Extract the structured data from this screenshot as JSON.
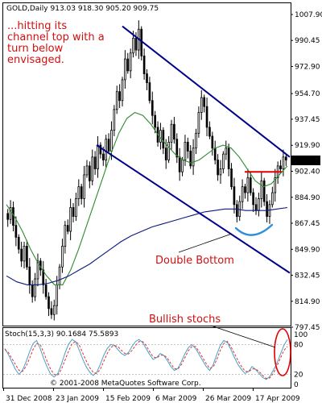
{
  "chart_data": {
    "type": "candlestick",
    "header": "GOLD,Daily  913.03 918.30 905.20 909.75",
    "price_axis": {
      "ticks": [
        "1007.90",
        "990.45",
        "972.90",
        "954.70",
        "937.45",
        "919.90",
        "902.40",
        "884.90",
        "867.45",
        "849.90",
        "832.45",
        "814.90",
        "797.45"
      ],
      "last_price": "909.75",
      "ylim": [
        797.45,
        1007.9
      ]
    },
    "date_axis": {
      "ticks": [
        "31 Dec 2008",
        "23 Jan 2009",
        "15 Feb 2009",
        "6 Mar 2009",
        "26 Mar 2009",
        "17 Apr 2009"
      ]
    },
    "closes": [
      870,
      878,
      866,
      858,
      850,
      842,
      852,
      838,
      826,
      818,
      830,
      842,
      836,
      826,
      818,
      810,
      806,
      812,
      826,
      838,
      852,
      866,
      862,
      878,
      872,
      884,
      892,
      884,
      900,
      906,
      896,
      912,
      904,
      920,
      914,
      910,
      924,
      916,
      930,
      944,
      956,
      950,
      964,
      978,
      970,
      982,
      992,
      984,
      998,
      980,
      968,
      962,
      950,
      940,
      932,
      922,
      930,
      918,
      910,
      922,
      934,
      924,
      912,
      902,
      910,
      922,
      916,
      906,
      918,
      928,
      942,
      952,
      946,
      932,
      926,
      918,
      910,
      900,
      904,
      914,
      918,
      904,
      892,
      880,
      872,
      882,
      892,
      888,
      898,
      888,
      880,
      876,
      884,
      896,
      882,
      872,
      880,
      888,
      898,
      906,
      904,
      912,
      910
    ],
    "moving_averages": [
      {
        "values": [
          880,
          872,
          862,
          850,
          840,
          832,
          826,
          826,
          836,
          850,
          866,
          882,
          898,
          914,
          928,
          938,
          942,
          940,
          934,
          926,
          920,
          914,
          910,
          908,
          910,
          914,
          918,
          920,
          918,
          912,
          904,
          896,
          892,
          894,
          900,
          906
        ]
      },
      {
        "values": [
          832,
          828,
          826,
          826,
          827,
          829,
          832,
          836,
          840,
          845,
          850,
          855,
          859,
          862,
          865,
          867,
          869,
          871,
          873,
          875,
          876,
          877,
          877,
          876,
          876,
          876,
          877,
          878
        ]
      }
    ],
    "channel": {
      "upper": [
        {
          "date": "15 Feb 2009",
          "price": 1000
        },
        {
          "date": "17 Apr 2009",
          "price": 912
        }
      ],
      "lower": [
        {
          "date": "11 Feb 2009",
          "price": 920
        },
        {
          "date": "17 Apr 2009",
          "price": 834
        }
      ]
    },
    "resistance": {
      "price": 902
    },
    "stochastic": {
      "header": "Stoch(15,3,3) 90.1684 75.5893",
      "ticks": [
        "100",
        "80",
        "20",
        "0"
      ],
      "ylim": [
        0,
        100
      ],
      "k": [
        72,
        60,
        45,
        30,
        20,
        28,
        45,
        65,
        82,
        88,
        72,
        52,
        35,
        20,
        15,
        22,
        40,
        62,
        80,
        90,
        86,
        70,
        52,
        36,
        25,
        18,
        24,
        40,
        58,
        72,
        80,
        78,
        70,
        62,
        58,
        64,
        76,
        86,
        90,
        84,
        72,
        60,
        50,
        54,
        62,
        58,
        48,
        36,
        28,
        32,
        46,
        62,
        74,
        80,
        72,
        60,
        48,
        36,
        28,
        40,
        60,
        78,
        88,
        84,
        70,
        54,
        40,
        30,
        22,
        26,
        36,
        30,
        22,
        14,
        10,
        16,
        28,
        42,
        60,
        78,
        90
      ],
      "d": [
        70,
        64,
        52,
        40,
        28,
        26,
        36,
        52,
        70,
        82,
        80,
        64,
        46,
        30,
        20,
        19,
        30,
        48,
        66,
        82,
        86,
        80,
        64,
        48,
        34,
        24,
        22,
        30,
        46,
        62,
        74,
        78,
        76,
        68,
        62,
        61,
        68,
        78,
        86,
        86,
        78,
        66,
        55,
        53,
        58,
        59,
        53,
        42,
        32,
        31,
        40,
        54,
        68,
        76,
        76,
        66,
        54,
        42,
        32,
        35,
        50,
        68,
        82,
        86,
        76,
        62,
        48,
        36,
        27,
        25,
        31,
        31,
        26,
        18,
        12,
        13,
        22,
        36,
        52,
        68,
        76
      ]
    },
    "annotations": {
      "top": [
        "...hitting its",
        "channel top with a",
        "turn below",
        "envisaged."
      ],
      "double_bottom": "Double Bottom",
      "bullish": "Bullish stochs"
    },
    "copyright": "© 2001-2008 MetaQuotes Software Corp.",
    "colors": {
      "bull": "#ffffff",
      "bear": "#000000",
      "ma_short": "#2e8b2e",
      "ma_long": "#0a1a7a",
      "channel": "#00008b",
      "resistance": "#e00000",
      "bottom_curve": "#2f8fd8",
      "annotation": "#d01010",
      "stoch_k": "#4aa0c8",
      "stoch_d": "#e03030",
      "last_price_bg": "#000000"
    }
  }
}
